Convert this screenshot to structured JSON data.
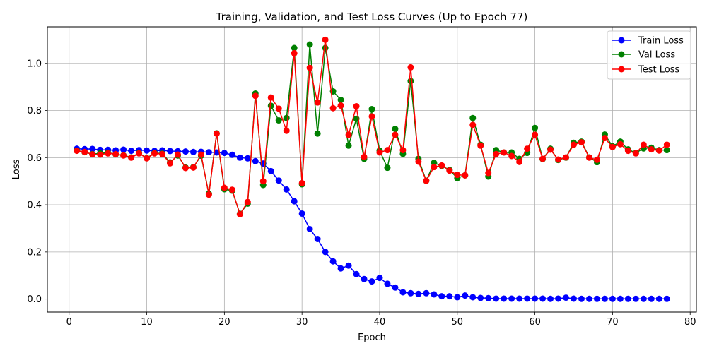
{
  "chart_data": {
    "type": "line",
    "title": "Training, Validation, and Test Loss Curves (Up to Epoch 77)",
    "xlabel": "Epoch",
    "ylabel": "Loss",
    "xlim": [
      -2.8,
      80.8
    ],
    "ylim": [
      -0.055,
      1.155
    ],
    "xticks": [
      0,
      10,
      20,
      30,
      40,
      50,
      60,
      70,
      80
    ],
    "yticks": [
      0.0,
      0.2,
      0.4,
      0.6,
      0.8,
      1.0
    ],
    "xtick_labels": [
      "0",
      "10",
      "20",
      "30",
      "40",
      "50",
      "60",
      "70",
      "80"
    ],
    "ytick_labels": [
      "0.0",
      "0.2",
      "0.4",
      "0.6",
      "0.8",
      "1.0"
    ],
    "grid": true,
    "legend_position": "top-right",
    "x": [
      1,
      2,
      3,
      4,
      5,
      6,
      7,
      8,
      9,
      10,
      11,
      12,
      13,
      14,
      15,
      16,
      17,
      18,
      19,
      20,
      21,
      22,
      23,
      24,
      25,
      26,
      27,
      28,
      29,
      30,
      31,
      32,
      33,
      34,
      35,
      36,
      37,
      38,
      39,
      40,
      41,
      42,
      43,
      44,
      45,
      46,
      47,
      48,
      49,
      50,
      51,
      52,
      53,
      54,
      55,
      56,
      57,
      58,
      59,
      60,
      61,
      62,
      63,
      64,
      65,
      66,
      67,
      68,
      69,
      70,
      71,
      72,
      73,
      74,
      75,
      76,
      77
    ],
    "series": [
      {
        "name": "Train Loss",
        "color": "#0000ff",
        "values": [
          0.638,
          0.636,
          0.637,
          0.633,
          0.633,
          0.631,
          0.634,
          0.629,
          0.632,
          0.63,
          0.629,
          0.631,
          0.628,
          0.627,
          0.626,
          0.624,
          0.625,
          0.623,
          0.622,
          0.62,
          0.612,
          0.6,
          0.597,
          0.585,
          0.575,
          0.543,
          0.503,
          0.465,
          0.415,
          0.363,
          0.297,
          0.255,
          0.2,
          0.16,
          0.13,
          0.142,
          0.106,
          0.085,
          0.075,
          0.09,
          0.065,
          0.049,
          0.029,
          0.025,
          0.022,
          0.025,
          0.02,
          0.012,
          0.012,
          0.008,
          0.015,
          0.008,
          0.005,
          0.004,
          0.002,
          0.002,
          0.002,
          0.002,
          0.002,
          0.002,
          0.002,
          0.001,
          0.002,
          0.006,
          0.002,
          0.001,
          0.001,
          0.001,
          0.001,
          0.001,
          0.001,
          0.001,
          0.001,
          0.001,
          0.001,
          0.001,
          0.001
        ]
      },
      {
        "name": "Val Loss",
        "color": "#008000",
        "values": [
          0.63,
          0.623,
          0.615,
          0.618,
          0.621,
          0.614,
          0.61,
          0.601,
          0.62,
          0.598,
          0.62,
          0.617,
          0.58,
          0.609,
          0.558,
          0.56,
          0.608,
          0.447,
          0.703,
          0.466,
          0.46,
          0.362,
          0.405,
          0.872,
          0.484,
          0.82,
          0.758,
          0.768,
          1.065,
          0.487,
          1.08,
          0.702,
          1.065,
          0.881,
          0.845,
          0.651,
          0.765,
          0.595,
          0.806,
          0.63,
          0.557,
          0.722,
          0.616,
          0.925,
          0.595,
          0.502,
          0.578,
          0.565,
          0.548,
          0.513,
          0.525,
          0.768,
          0.655,
          0.52,
          0.632,
          0.622,
          0.622,
          0.595,
          0.62,
          0.726,
          0.594,
          0.638,
          0.59,
          0.6,
          0.663,
          0.668,
          0.601,
          0.581,
          0.698,
          0.648,
          0.668,
          0.635,
          0.62,
          0.639,
          0.642,
          0.632,
          0.632
        ]
      },
      {
        "name": "Test Loss",
        "color": "#ff0000",
        "values": [
          0.629,
          0.624,
          0.614,
          0.613,
          0.618,
          0.615,
          0.609,
          0.6,
          0.618,
          0.597,
          0.618,
          0.615,
          0.576,
          0.613,
          0.556,
          0.558,
          0.613,
          0.443,
          0.702,
          0.472,
          0.464,
          0.36,
          0.412,
          0.862,
          0.5,
          0.855,
          0.808,
          0.714,
          1.043,
          0.492,
          0.981,
          0.834,
          1.1,
          0.81,
          0.821,
          0.697,
          0.818,
          0.603,
          0.775,
          0.622,
          0.632,
          0.697,
          0.632,
          0.983,
          0.583,
          0.502,
          0.56,
          0.567,
          0.545,
          0.527,
          0.525,
          0.739,
          0.651,
          0.535,
          0.615,
          0.622,
          0.607,
          0.582,
          0.638,
          0.697,
          0.595,
          0.634,
          0.592,
          0.601,
          0.655,
          0.665,
          0.6,
          0.591,
          0.683,
          0.645,
          0.657,
          0.629,
          0.618,
          0.655,
          0.635,
          0.63,
          0.655
        ]
      }
    ]
  }
}
